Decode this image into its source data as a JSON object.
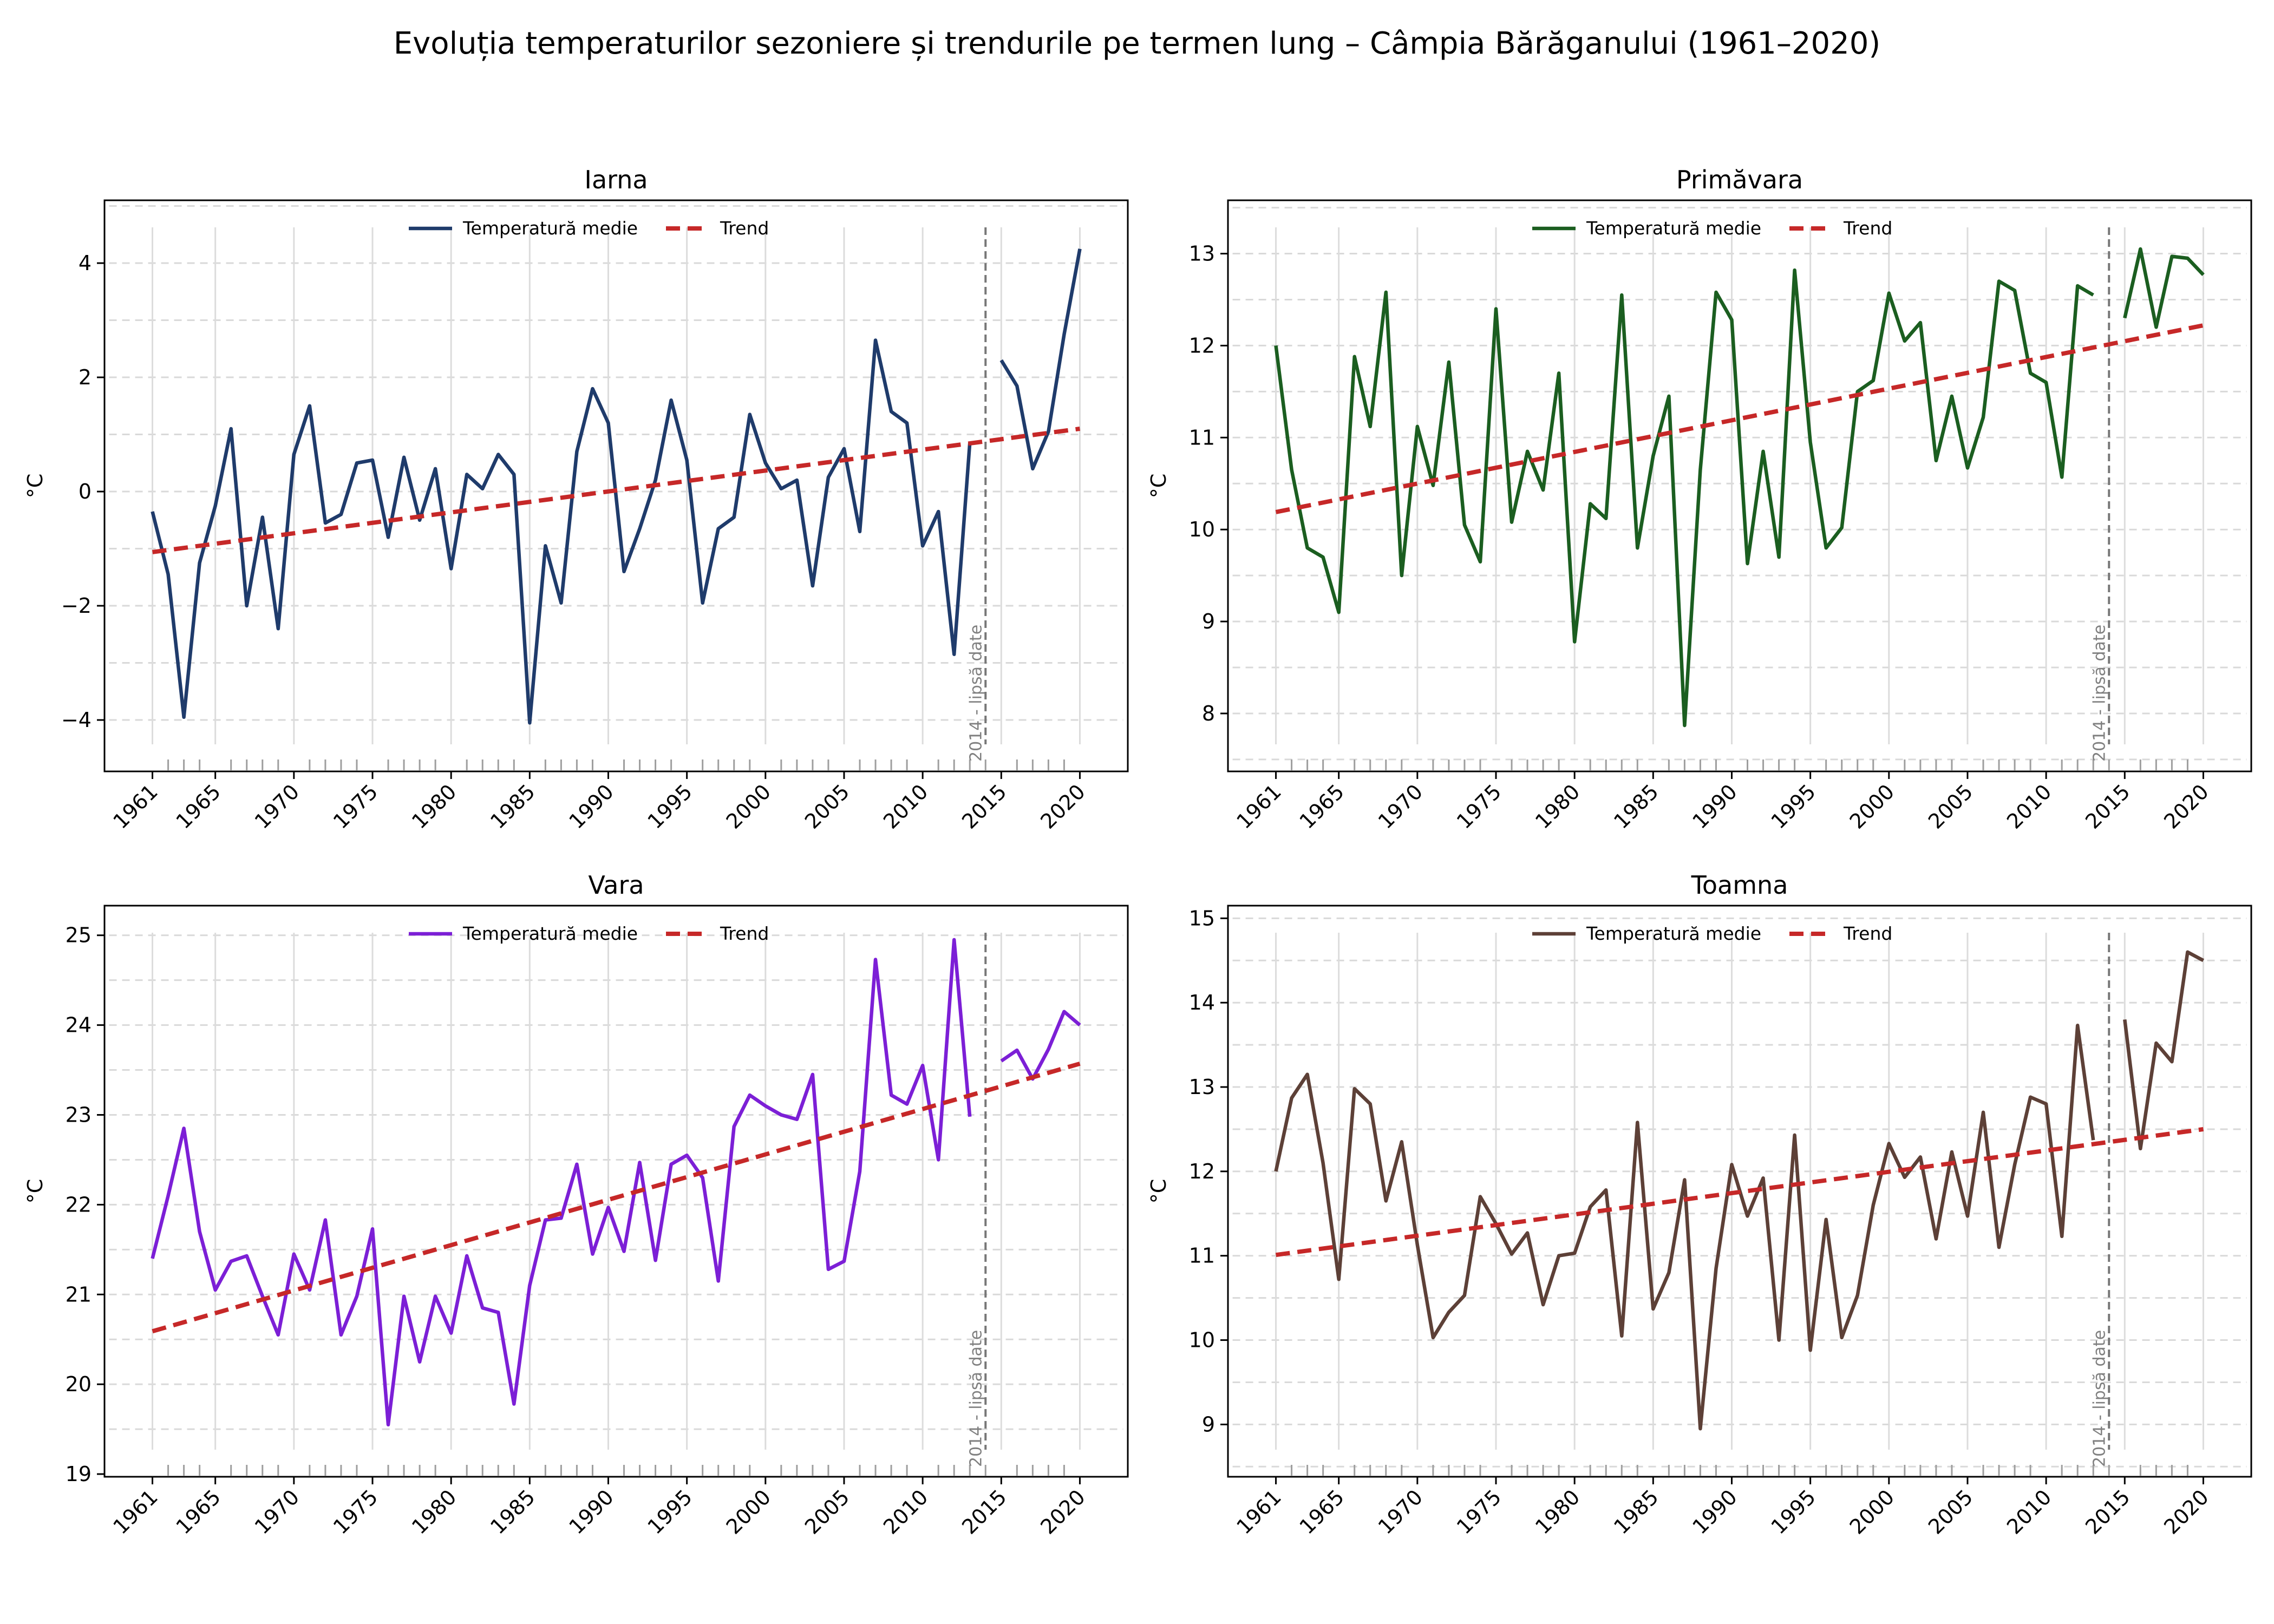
{
  "figure": {
    "title": "Evoluția temperaturilor sezoniere și trendurile pe termen lung – Câmpia Bărăganului (1961–2020)",
    "legend_labels": {
      "mean": "Temperatură medie",
      "trend": "Trend"
    },
    "gap_annotation": "2014 - lipsă date",
    "ylabel": "°C"
  },
  "chart_data": [
    {
      "type": "line",
      "title": "Iarna",
      "ylabel": "°C",
      "xlim": [
        1957.95,
        2023.05
      ],
      "ylim": [
        -4.9,
        5.1
      ],
      "xticks": [
        1961,
        1965,
        1970,
        1975,
        1980,
        1985,
        1990,
        1995,
        2000,
        2005,
        2010,
        2015,
        2020
      ],
      "yticks": [
        -4,
        -2,
        0,
        2,
        4
      ],
      "grid": true,
      "legend_position": "upper center",
      "gap_year": 2014,
      "series": [
        {
          "name": "Temperatură medie",
          "color": "#1f3b6b",
          "style": "solid",
          "x": [
            1961,
            1962,
            1963,
            1964,
            1965,
            1966,
            1967,
            1968,
            1969,
            1970,
            1971,
            1972,
            1973,
            1974,
            1975,
            1976,
            1977,
            1978,
            1979,
            1980,
            1981,
            1982,
            1983,
            1984,
            1985,
            1986,
            1987,
            1988,
            1989,
            1990,
            1991,
            1992,
            1993,
            1994,
            1995,
            1996,
            1997,
            1998,
            1999,
            2000,
            2001,
            2002,
            2003,
            2004,
            2005,
            2006,
            2007,
            2008,
            2009,
            2010,
            2011,
            2012,
            2013,
            2014,
            2015,
            2016,
            2017,
            2018,
            2019,
            2020
          ],
          "values": [
            -0.35,
            -1.45,
            -3.95,
            -1.25,
            -0.25,
            1.1,
            -2.0,
            -0.45,
            -2.4,
            0.65,
            1.5,
            -0.55,
            -0.4,
            0.5,
            0.55,
            -0.8,
            0.6,
            -0.5,
            0.4,
            -1.35,
            0.3,
            0.05,
            0.65,
            0.3,
            -4.05,
            -0.95,
            -1.95,
            0.7,
            1.8,
            1.2,
            -1.4,
            -0.65,
            0.2,
            1.6,
            0.55,
            -1.95,
            -0.65,
            -0.45,
            1.35,
            0.5,
            0.05,
            0.2,
            -1.65,
            0.25,
            0.75,
            -0.7,
            2.65,
            1.4,
            1.2,
            -0.95,
            -0.35,
            -2.85,
            0.85,
            null,
            2.3,
            1.85,
            0.4,
            1.05,
            2.75,
            4.25
          ]
        },
        {
          "name": "Trend",
          "color": "#c62828",
          "style": "dashed",
          "x": [
            1961,
            2020
          ],
          "values": [
            -1.06,
            1.1
          ]
        }
      ]
    },
    {
      "type": "line",
      "title": "Primăvara",
      "ylabel": "°C",
      "xlim": [
        1957.95,
        2023.05
      ],
      "ylim": [
        7.37,
        13.58
      ],
      "xticks": [
        1961,
        1965,
        1970,
        1975,
        1980,
        1985,
        1990,
        1995,
        2000,
        2005,
        2010,
        2015,
        2020
      ],
      "yticks": [
        8,
        9,
        10,
        11,
        12,
        13
      ],
      "grid": true,
      "legend_position": "upper center",
      "gap_year": 2014,
      "series": [
        {
          "name": "Temperatură medie",
          "color": "#1b5e20",
          "style": "solid",
          "x": [
            1961,
            1962,
            1963,
            1964,
            1965,
            1966,
            1967,
            1968,
            1969,
            1970,
            1971,
            1972,
            1973,
            1974,
            1975,
            1976,
            1977,
            1978,
            1979,
            1980,
            1981,
            1982,
            1983,
            1984,
            1985,
            1986,
            1987,
            1988,
            1989,
            1990,
            1991,
            1992,
            1993,
            1994,
            1995,
            1996,
            1997,
            1998,
            1999,
            2000,
            2001,
            2002,
            2003,
            2004,
            2005,
            2006,
            2007,
            2008,
            2009,
            2010,
            2011,
            2012,
            2013,
            2014,
            2015,
            2016,
            2017,
            2018,
            2019,
            2020
          ],
          "values": [
            12.0,
            10.65,
            9.8,
            9.7,
            9.1,
            11.88,
            11.12,
            12.58,
            9.5,
            11.12,
            10.48,
            11.82,
            10.05,
            9.65,
            12.4,
            10.08,
            10.85,
            10.43,
            11.7,
            8.78,
            10.28,
            10.12,
            12.55,
            9.8,
            10.8,
            11.45,
            7.87,
            10.65,
            12.58,
            12.28,
            9.63,
            10.85,
            9.7,
            12.82,
            10.95,
            9.8,
            10.02,
            11.5,
            11.62,
            12.57,
            12.05,
            12.25,
            10.75,
            11.45,
            10.67,
            11.22,
            12.7,
            12.6,
            11.7,
            11.6,
            10.57,
            12.65,
            12.55,
            null,
            12.3,
            13.05,
            12.2,
            12.97,
            12.95,
            12.77
          ]
        },
        {
          "name": "Trend",
          "color": "#c62828",
          "style": "dashed",
          "x": [
            1961,
            2020
          ],
          "values": [
            10.19,
            12.22
          ]
        }
      ]
    },
    {
      "type": "line",
      "title": "Vara",
      "ylabel": "°C",
      "xlim": [
        1957.95,
        2023.05
      ],
      "ylim": [
        18.97,
        25.33
      ],
      "xticks": [
        1961,
        1965,
        1970,
        1975,
        1980,
        1985,
        1990,
        1995,
        2000,
        2005,
        2010,
        2015,
        2020
      ],
      "yticks": [
        19,
        20,
        21,
        22,
        23,
        24,
        25
      ],
      "grid": true,
      "legend_position": "upper center",
      "gap_year": 2014,
      "series": [
        {
          "name": "Temperatură medie",
          "color": "#7c1fd6",
          "style": "solid",
          "x": [
            1961,
            1962,
            1963,
            1964,
            1965,
            1966,
            1967,
            1968,
            1969,
            1970,
            1971,
            1972,
            1973,
            1974,
            1975,
            1976,
            1977,
            1978,
            1979,
            1980,
            1981,
            1982,
            1983,
            1984,
            1985,
            1986,
            1987,
            1988,
            1989,
            1990,
            1991,
            1992,
            1993,
            1994,
            1995,
            1996,
            1997,
            1998,
            1999,
            2000,
            2001,
            2002,
            2003,
            2004,
            2005,
            2006,
            2007,
            2008,
            2009,
            2010,
            2011,
            2012,
            2013,
            2014,
            2015,
            2016,
            2017,
            2018,
            2019,
            2020
          ],
          "values": [
            21.4,
            22.1,
            22.85,
            21.7,
            21.05,
            21.37,
            21.43,
            20.98,
            20.55,
            21.45,
            21.05,
            21.83,
            20.55,
            20.98,
            21.73,
            19.55,
            20.98,
            20.25,
            20.98,
            20.57,
            21.43,
            20.85,
            20.8,
            19.78,
            21.1,
            21.83,
            21.85,
            22.45,
            21.45,
            21.97,
            21.48,
            22.47,
            21.38,
            22.45,
            22.55,
            22.3,
            21.15,
            22.87,
            23.22,
            23.1,
            23.0,
            22.95,
            23.45,
            21.28,
            21.37,
            22.37,
            24.73,
            23.22,
            23.12,
            23.55,
            22.5,
            24.95,
            22.98,
            null,
            23.6,
            23.72,
            23.4,
            23.73,
            24.15,
            24.0
          ]
        },
        {
          "name": "Trend",
          "color": "#c62828",
          "style": "dashed",
          "x": [
            1961,
            2020
          ],
          "values": [
            20.59,
            23.57
          ]
        }
      ]
    },
    {
      "type": "line",
      "title": "Toamna",
      "ylabel": "°C",
      "xlim": [
        1957.95,
        2023.05
      ],
      "ylim": [
        8.38,
        15.15
      ],
      "xticks": [
        1961,
        1965,
        1970,
        1975,
        1980,
        1985,
        1990,
        1995,
        2000,
        2005,
        2010,
        2015,
        2020
      ],
      "yticks": [
        9,
        10,
        11,
        12,
        13,
        14,
        15
      ],
      "grid": true,
      "legend_position": "upper center",
      "gap_year": 2014,
      "series": [
        {
          "name": "Temperatură medie",
          "color": "#5d4037",
          "style": "solid",
          "x": [
            1961,
            1962,
            1963,
            1964,
            1965,
            1966,
            1967,
            1968,
            1969,
            1970,
            1971,
            1972,
            1973,
            1974,
            1975,
            1976,
            1977,
            1978,
            1979,
            1980,
            1981,
            1982,
            1983,
            1984,
            1985,
            1986,
            1987,
            1988,
            1989,
            1990,
            1991,
            1992,
            1993,
            1994,
            1995,
            1996,
            1997,
            1998,
            1999,
            2000,
            2001,
            2002,
            2003,
            2004,
            2005,
            2006,
            2007,
            2008,
            2009,
            2010,
            2011,
            2012,
            2013,
            2014,
            2015,
            2016,
            2017,
            2018,
            2019,
            2020
          ],
          "values": [
            12.0,
            12.87,
            13.15,
            12.1,
            10.72,
            12.98,
            12.8,
            11.65,
            12.35,
            11.13,
            10.03,
            10.33,
            10.53,
            11.7,
            11.38,
            11.02,
            11.27,
            10.42,
            11.0,
            11.03,
            11.58,
            11.78,
            10.05,
            12.58,
            10.37,
            10.8,
            11.9,
            8.95,
            10.85,
            12.08,
            11.47,
            11.92,
            10.0,
            12.43,
            9.88,
            11.43,
            10.03,
            10.53,
            11.6,
            12.33,
            11.93,
            12.17,
            11.2,
            12.23,
            11.47,
            12.7,
            11.1,
            12.08,
            12.88,
            12.8,
            11.23,
            13.73,
            12.37,
            null,
            13.8,
            12.27,
            13.52,
            13.3,
            14.6,
            14.5
          ]
        },
        {
          "name": "Trend",
          "color": "#c62828",
          "style": "dashed",
          "x": [
            1961,
            2020
          ],
          "values": [
            11.01,
            12.5
          ]
        }
      ]
    }
  ]
}
